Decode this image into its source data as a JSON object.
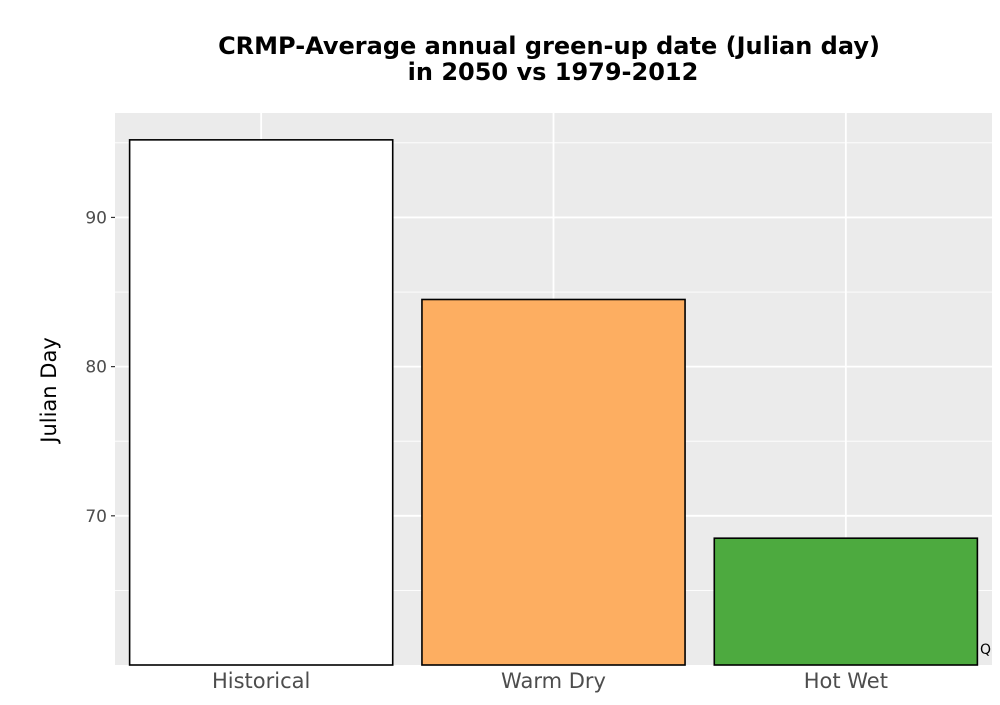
{
  "chart_data": {
    "type": "bar",
    "title_line1": "CRMP-Average annual green-up date (Julian day)",
    "title_line2": "in 2050 vs 1979-2012",
    "xlabel": "",
    "ylabel": "Julian Day",
    "categories": [
      "Historical",
      "Warm Dry",
      "Hot Wet"
    ],
    "values": [
      95.2,
      84.5,
      68.5
    ],
    "colors": [
      "#ffffff",
      "#fdae61",
      "#4daa3f"
    ],
    "ylim": [
      60,
      97
    ],
    "y_ticks": [
      70,
      80,
      90
    ],
    "y_tick_labels": [
      "70",
      "80",
      "90"
    ],
    "grid": true,
    "panel_color": "#ebebeb",
    "footnote": "Q"
  }
}
